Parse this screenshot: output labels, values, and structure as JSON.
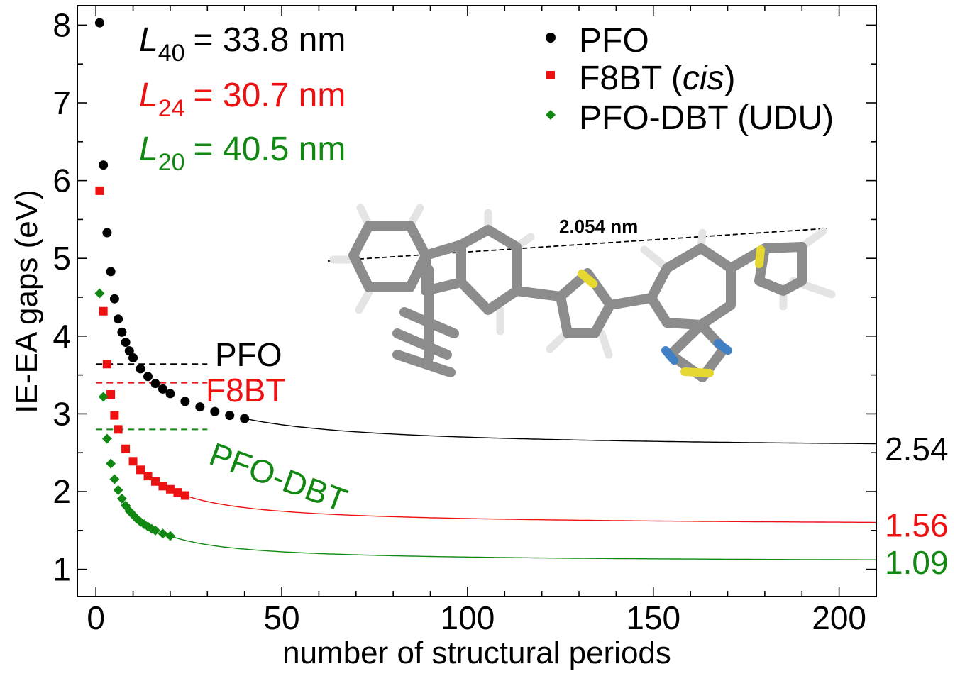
{
  "chart_data": {
    "type": "scatter",
    "title": "",
    "xlabel": "number of structural periods",
    "ylabel": "IE-EA gaps (eV)",
    "xlim": [
      -5,
      210
    ],
    "ylim": [
      0.65,
      8.25
    ],
    "xticks": [
      "0",
      "50",
      "100",
      "150",
      "200"
    ],
    "xtick_values": [
      0,
      50,
      100,
      150,
      200
    ],
    "yticks": [
      "1",
      "2",
      "3",
      "4",
      "5",
      "6",
      "7",
      "8"
    ],
    "ytick_values": [
      1,
      2,
      3,
      4,
      5,
      6,
      7,
      8
    ],
    "grid": false,
    "legend_position": "top-right",
    "series": [
      {
        "name": "PFO",
        "color": "#000000",
        "marker": "circle",
        "x": [
          1,
          2,
          3,
          4,
          5,
          6,
          7,
          8,
          9,
          10,
          12,
          14,
          16,
          18,
          20,
          24,
          28,
          32,
          36,
          40
        ],
        "y": [
          8.03,
          6.2,
          5.33,
          4.83,
          4.48,
          4.22,
          4.05,
          3.92,
          3.81,
          3.72,
          3.58,
          3.48,
          3.39,
          3.32,
          3.26,
          3.16,
          3.09,
          3.03,
          2.98,
          2.94
        ],
        "fit_limit": 2.54,
        "fit_label": "2.54",
        "ref_level": 3.64,
        "ref_label": "PFO"
      },
      {
        "name": "F8BT (cis)",
        "color": "#ee1111",
        "marker": "square",
        "x": [
          1,
          2,
          3,
          4,
          5,
          6,
          8,
          10,
          12,
          14,
          16,
          18,
          20,
          22,
          24
        ],
        "y": [
          5.87,
          4.32,
          3.64,
          3.25,
          2.98,
          2.8,
          2.55,
          2.39,
          2.28,
          2.2,
          2.13,
          2.07,
          2.03,
          1.99,
          1.95
        ],
        "fit_limit": 1.56,
        "fit_label": "1.56",
        "ref_level": 3.4,
        "ref_label": "F8BT"
      },
      {
        "name": "PFO-DBT (UDU)",
        "color": "#118811",
        "marker": "diamond",
        "x": [
          1,
          2,
          3,
          4,
          5,
          6,
          7,
          8,
          9,
          10,
          11,
          12,
          13,
          14,
          15,
          16,
          18,
          20
        ],
        "y": [
          4.55,
          3.22,
          2.68,
          2.36,
          2.16,
          2.02,
          1.91,
          1.82,
          1.75,
          1.7,
          1.65,
          1.61,
          1.58,
          1.55,
          1.52,
          1.5,
          1.46,
          1.43
        ],
        "fit_limit": 1.09,
        "fit_label": "1.09",
        "ref_level": 2.8,
        "ref_label": "PFO-DBT"
      }
    ],
    "length_annotations": [
      {
        "symbol": "L",
        "subscript": "40",
        "text": "= 33.8 nm",
        "color": "#000000"
      },
      {
        "symbol": "L",
        "subscript": "24",
        "text": "= 30.7 nm",
        "color": "#ee1111"
      },
      {
        "symbol": "L",
        "subscript": "20",
        "text": "= 40.5 nm",
        "color": "#118811"
      }
    ],
    "legend": [
      {
        "text": "PFO",
        "italic": "",
        "suffix": ""
      },
      {
        "text": "F8BT (",
        "italic": "cis",
        "suffix": ")"
      },
      {
        "text": "PFO-DBT (UDU)",
        "italic": "",
        "suffix": ""
      }
    ],
    "molecule_label": "2.054 nm"
  }
}
